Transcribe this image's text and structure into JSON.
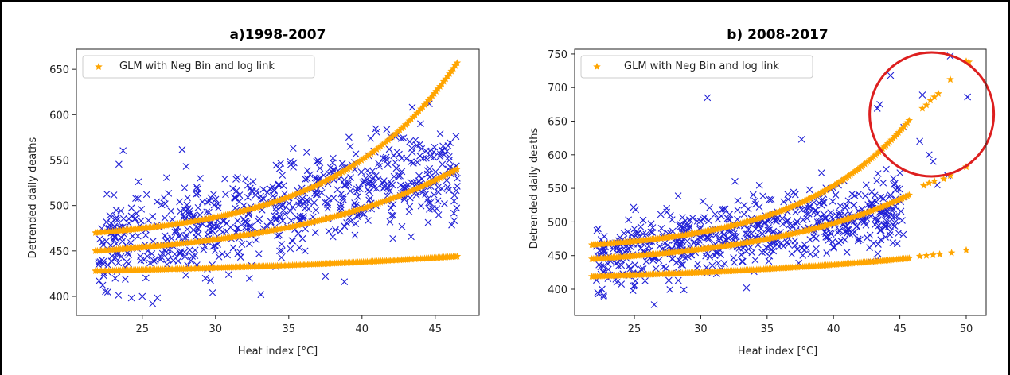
{
  "colors": {
    "observed": "#1f1fd6",
    "model": "#FFA500",
    "highlight": "#dd1f1f"
  },
  "chart_data": [
    {
      "type": "scatter",
      "title": "a)1998-2007",
      "xlabel": "Heat index [°C]",
      "ylabel": "Detrended daily deaths",
      "xlim": [
        20.5,
        48.0
      ],
      "ylim": [
        379,
        672
      ],
      "xticks": [
        25,
        30,
        35,
        40,
        45
      ],
      "yticks": [
        400,
        450,
        500,
        550,
        600,
        650
      ],
      "grid": false,
      "legend": {
        "location": "upper-left",
        "entries": [
          "GLM with Neg Bin and log link"
        ]
      },
      "series": [
        {
          "name": "",
          "marker": "x",
          "color": "#1f1fd6",
          "cloud": {
            "x_range": [
              22,
              46.5
            ],
            "count": 680,
            "center_line": [
              [
                22,
                455
              ],
              [
                46.5,
                540
              ]
            ],
            "spread": 28,
            "seed": 11
          },
          "points": [
            [
              25.7,
              392
            ],
            [
              25,
              400
            ],
            [
              35.3,
              563
            ],
            [
              39.2,
              565
            ],
            [
              41.7,
              550
            ],
            [
              44.6,
              612
            ],
            [
              44,
              590
            ],
            [
              43.4,
              563
            ],
            [
              45.9,
              540
            ],
            [
              28,
              543
            ],
            [
              46.5,
              530
            ],
            [
              45.2,
              520
            ],
            [
              37.5,
              422
            ],
            [
              38.8,
              416
            ],
            [
              29.8,
              404
            ],
            [
              33.1,
              402
            ]
          ]
        },
        {
          "name": "GLM with Neg Bin and log link",
          "marker": "*",
          "color": "#FFA500",
          "curve": {
            "x_range": [
              21.8,
              46.5
            ],
            "count": 190,
            "y_start": 470,
            "y_end": 657,
            "shape": 0.12
          }
        },
        {
          "name": "",
          "marker": "*",
          "color": "#FFA500",
          "curve": {
            "x_range": [
              21.8,
              46.5
            ],
            "count": 190,
            "y_start": 450,
            "y_end": 540,
            "shape": 0.085
          }
        },
        {
          "name": "",
          "marker": "*",
          "color": "#FFA500",
          "curve": {
            "x_range": [
              21.8,
              46.5
            ],
            "count": 190,
            "y_start": 428,
            "y_end": 444,
            "shape": 0.05
          }
        }
      ]
    },
    {
      "type": "scatter",
      "title": "b) 2008-2017",
      "xlabel": "Heat index [°C]",
      "ylabel": "Detrended daily deaths",
      "xlim": [
        20.5,
        51.5
      ],
      "ylim": [
        361,
        757
      ],
      "xticks": [
        25,
        30,
        35,
        40,
        45,
        50
      ],
      "yticks": [
        400,
        450,
        500,
        550,
        600,
        650,
        700,
        750
      ],
      "grid": false,
      "legend": {
        "location": "upper-left",
        "entries": [
          "GLM with Neg Bin and log link"
        ]
      },
      "annotations": [
        {
          "type": "circle",
          "center": [
            47.4,
            660
          ],
          "label": ""
        }
      ],
      "series": [
        {
          "name": "",
          "marker": "x",
          "color": "#1f1fd6",
          "cloud": {
            "x_range": [
              22,
              45.5
            ],
            "count": 650,
            "center_line": [
              [
                22,
                448
              ],
              [
                45.5,
                520
              ]
            ],
            "spread": 27,
            "seed": 29
          },
          "points": [
            [
              30.5,
              685
            ],
            [
              37.6,
              623
            ],
            [
              44.3,
              718
            ],
            [
              43.5,
              675
            ],
            [
              43.3,
              669
            ],
            [
              45.3,
              641
            ],
            [
              46.7,
              689
            ],
            [
              46.5,
              620
            ],
            [
              47.2,
              600
            ],
            [
              47.5,
              590
            ],
            [
              48.8,
              747
            ],
            [
              50.1,
              686
            ],
            [
              47.8,
              555
            ],
            [
              26.5,
              377
            ],
            [
              48.6,
              569
            ],
            [
              39.1,
              573
            ]
          ]
        },
        {
          "name": "GLM with Neg Bin and log link",
          "marker": "*",
          "color": "#FFA500",
          "curve": {
            "x_range": [
              21.8,
              45.7
            ],
            "count": 180,
            "y_start": 466,
            "y_end": 651,
            "shape": 0.12
          },
          "points": [
            [
              46.7,
              669
            ],
            [
              47.0,
              674
            ],
            [
              47.3,
              681
            ],
            [
              47.6,
              686
            ],
            [
              47.9,
              691
            ],
            [
              48.8,
              712
            ],
            [
              50.0,
              739
            ],
            [
              50.2,
              738
            ]
          ]
        },
        {
          "name": "",
          "marker": "*",
          "color": "#FFA500",
          "curve": {
            "x_range": [
              21.8,
              45.7
            ],
            "count": 180,
            "y_start": 445,
            "y_end": 540,
            "shape": 0.085
          },
          "points": [
            [
              46.8,
              554
            ],
            [
              47.2,
              558
            ],
            [
              47.6,
              561
            ],
            [
              48.3,
              564
            ],
            [
              48.8,
              569
            ],
            [
              50.0,
              582
            ]
          ]
        },
        {
          "name": "",
          "marker": "*",
          "color": "#FFA500",
          "curve": {
            "x_range": [
              21.8,
              45.7
            ],
            "count": 180,
            "y_start": 419,
            "y_end": 446,
            "shape": 0.05
          },
          "points": [
            [
              46.5,
              449
            ],
            [
              47.0,
              450
            ],
            [
              47.5,
              451
            ],
            [
              48.0,
              452
            ],
            [
              48.9,
              454
            ],
            [
              50.0,
              458
            ]
          ]
        }
      ]
    }
  ]
}
